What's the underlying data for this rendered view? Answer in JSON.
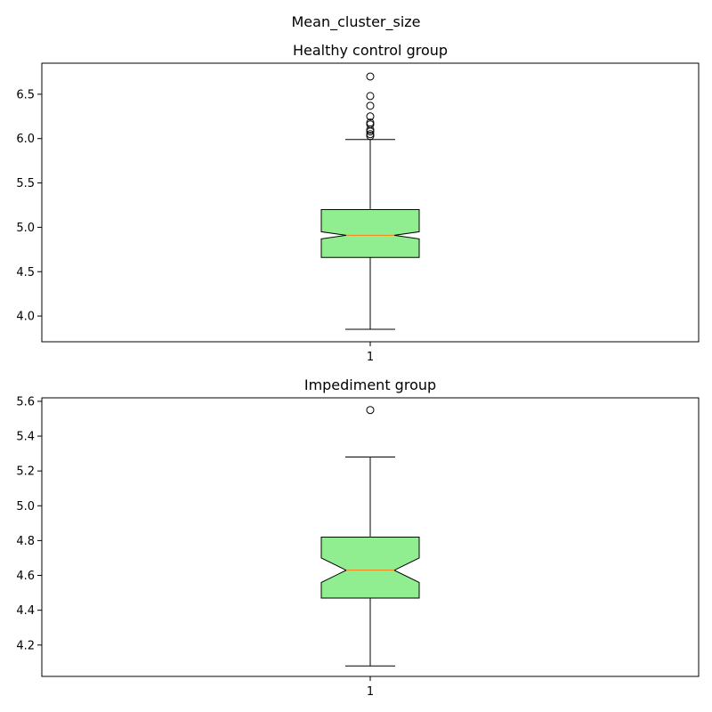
{
  "figure": {
    "suptitle": "Mean_cluster_size"
  },
  "colors": {
    "box_fill": "#90ee90",
    "median": "#ff7f0e",
    "stroke": "#000000"
  },
  "chart_data": [
    {
      "type": "boxplot",
      "title": "Healthy control group",
      "notched": true,
      "categories": [
        "1"
      ],
      "ylim": [
        3.71,
        6.85
      ],
      "yticks": [
        4.0,
        4.5,
        5.0,
        5.5,
        6.0,
        6.5
      ],
      "ytick_labels": [
        "4.0",
        "4.5",
        "5.0",
        "5.5",
        "6.0",
        "6.5"
      ],
      "stats": {
        "whisker_low": 3.85,
        "q1": 4.66,
        "notch_low": 4.87,
        "median": 4.91,
        "notch_high": 4.95,
        "q3": 5.2,
        "whisker_high": 5.99
      },
      "outliers": [
        6.03,
        6.05,
        6.08,
        6.1,
        6.16,
        6.18,
        6.25,
        6.37,
        6.48,
        6.7
      ]
    },
    {
      "type": "boxplot",
      "title": "Impediment group",
      "notched": true,
      "categories": [
        "1"
      ],
      "ylim": [
        4.02,
        5.62
      ],
      "yticks": [
        4.2,
        4.4,
        4.6,
        4.8,
        5.0,
        5.2,
        5.4,
        5.6
      ],
      "ytick_labels": [
        "4.2",
        "4.4",
        "4.6",
        "4.8",
        "5.0",
        "5.2",
        "5.4",
        "5.6"
      ],
      "stats": {
        "whisker_low": 4.08,
        "q1": 4.47,
        "notch_low": 4.56,
        "median": 4.63,
        "notch_high": 4.7,
        "q3": 4.82,
        "whisker_high": 5.28
      },
      "outliers": [
        5.55
      ]
    }
  ]
}
